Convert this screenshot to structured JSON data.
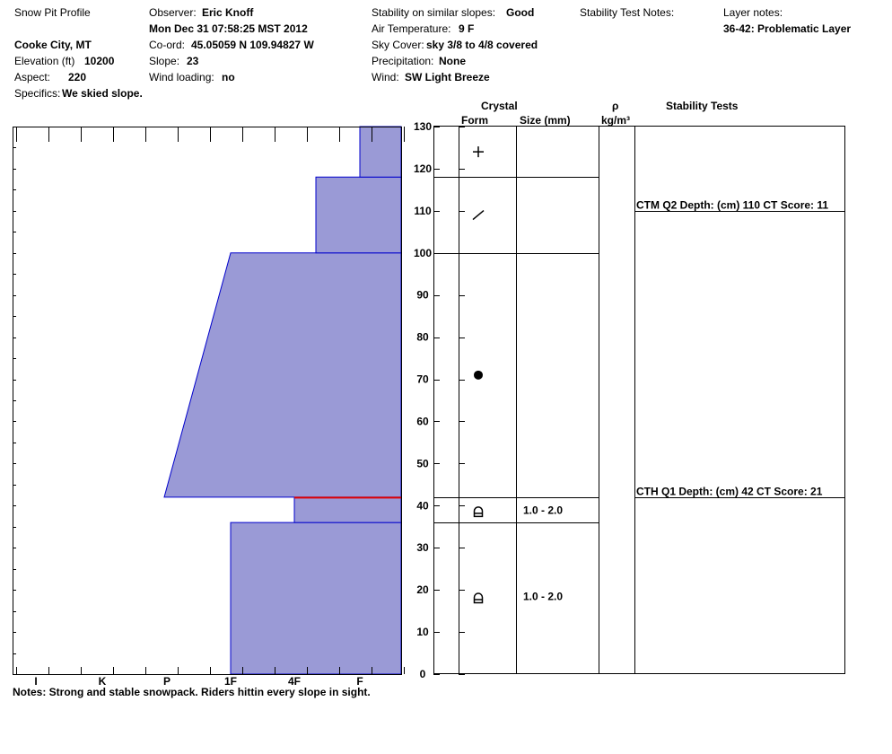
{
  "header": {
    "title": "Snow Pit Profile",
    "location": "Cooke City, MT",
    "elevation_label": "Elevation (ft)",
    "elevation_value": "10200",
    "aspect_label": "Aspect:",
    "aspect_value": "220",
    "specifics_label": "Specifics:",
    "specifics_value": "We skied slope.",
    "observer_label": "Observer:",
    "observer_value": "Eric Knoff",
    "datetime": "Mon Dec 31 07:58:25 MST 2012",
    "coord_label": "Co-ord:",
    "coord_value": "45.05059 N 109.94827 W",
    "slope_label": "Slope:",
    "slope_value": "23",
    "wind_loading_label": "Wind loading:",
    "wind_loading_value": "no",
    "stability_label": "Stability on similar slopes:",
    "stability_value": "Good",
    "air_temp_label": "Air Temperature:",
    "air_temp_value": "9 F",
    "sky_label": "Sky Cover:",
    "sky_value": "sky 3/8 to 4/8 covered",
    "precip_label": "Precipitation:",
    "precip_value": "None",
    "wind_label": "Wind:",
    "wind_value": "SW Light Breeze",
    "stability_notes_label": "Stability Test Notes:",
    "layer_notes_label": "Layer notes:",
    "layer_notes_value": "36-42: Problematic Layer"
  },
  "notes": "Notes:  Strong and stable snowpack.  Riders hittin every slope in sight.",
  "columns": {
    "crystal": "Crystal",
    "form": "Form",
    "size": "Size (mm)",
    "rho": "ρ",
    "density_unit": "kg/m³",
    "stability_tests": "Stability Tests"
  },
  "colors": {
    "fill": "#9a9ad6",
    "stroke": "#0000cc",
    "weak_layer": "#e00000"
  },
  "chart_data": {
    "type": "area",
    "ylim": [
      0,
      130
    ],
    "y_ticks": [
      0,
      10,
      20,
      30,
      40,
      50,
      60,
      70,
      80,
      90,
      100,
      110,
      120,
      130
    ],
    "hardness_scale": [
      "I",
      "K",
      "P",
      "1F",
      "4F",
      "F"
    ],
    "hardness_profile": [
      {
        "bottom": 0,
        "top": 36,
        "hardness_bottom": "1F",
        "hardness_top": "1F"
      },
      {
        "bottom": 36,
        "top": 42,
        "hardness_bottom": "4F",
        "hardness_top": "4F"
      },
      {
        "bottom": 42,
        "top": 100,
        "hardness_bottom": "P-",
        "hardness_top": "1F"
      },
      {
        "bottom": 100,
        "top": 118,
        "hardness_bottom": "4F+",
        "hardness_top": "4F+"
      },
      {
        "bottom": 118,
        "top": 130,
        "hardness_bottom": "F",
        "hardness_top": "F"
      }
    ],
    "weak_layer_depth": 42,
    "layer_boundaries": [
      36,
      42,
      100,
      118
    ],
    "crystals": [
      {
        "depth": 124,
        "form": "plus-icon",
        "size": ""
      },
      {
        "depth": 109,
        "form": "slash-icon",
        "size": ""
      },
      {
        "depth": 71,
        "form": "dot-icon",
        "size": ""
      },
      {
        "depth": 38.5,
        "form": "depth-hoar-icon",
        "size": "1.0 - 2.0"
      },
      {
        "depth": 18,
        "form": "depth-hoar-icon",
        "size": "1.0 - 2.0"
      }
    ],
    "stability_tests": [
      {
        "depth": 110,
        "text": "CTM Q2 Depth: (cm) 110 CT Score: 11"
      },
      {
        "depth": 42,
        "text": "CTH Q1 Depth: (cm) 42 CT Score: 21"
      }
    ]
  }
}
